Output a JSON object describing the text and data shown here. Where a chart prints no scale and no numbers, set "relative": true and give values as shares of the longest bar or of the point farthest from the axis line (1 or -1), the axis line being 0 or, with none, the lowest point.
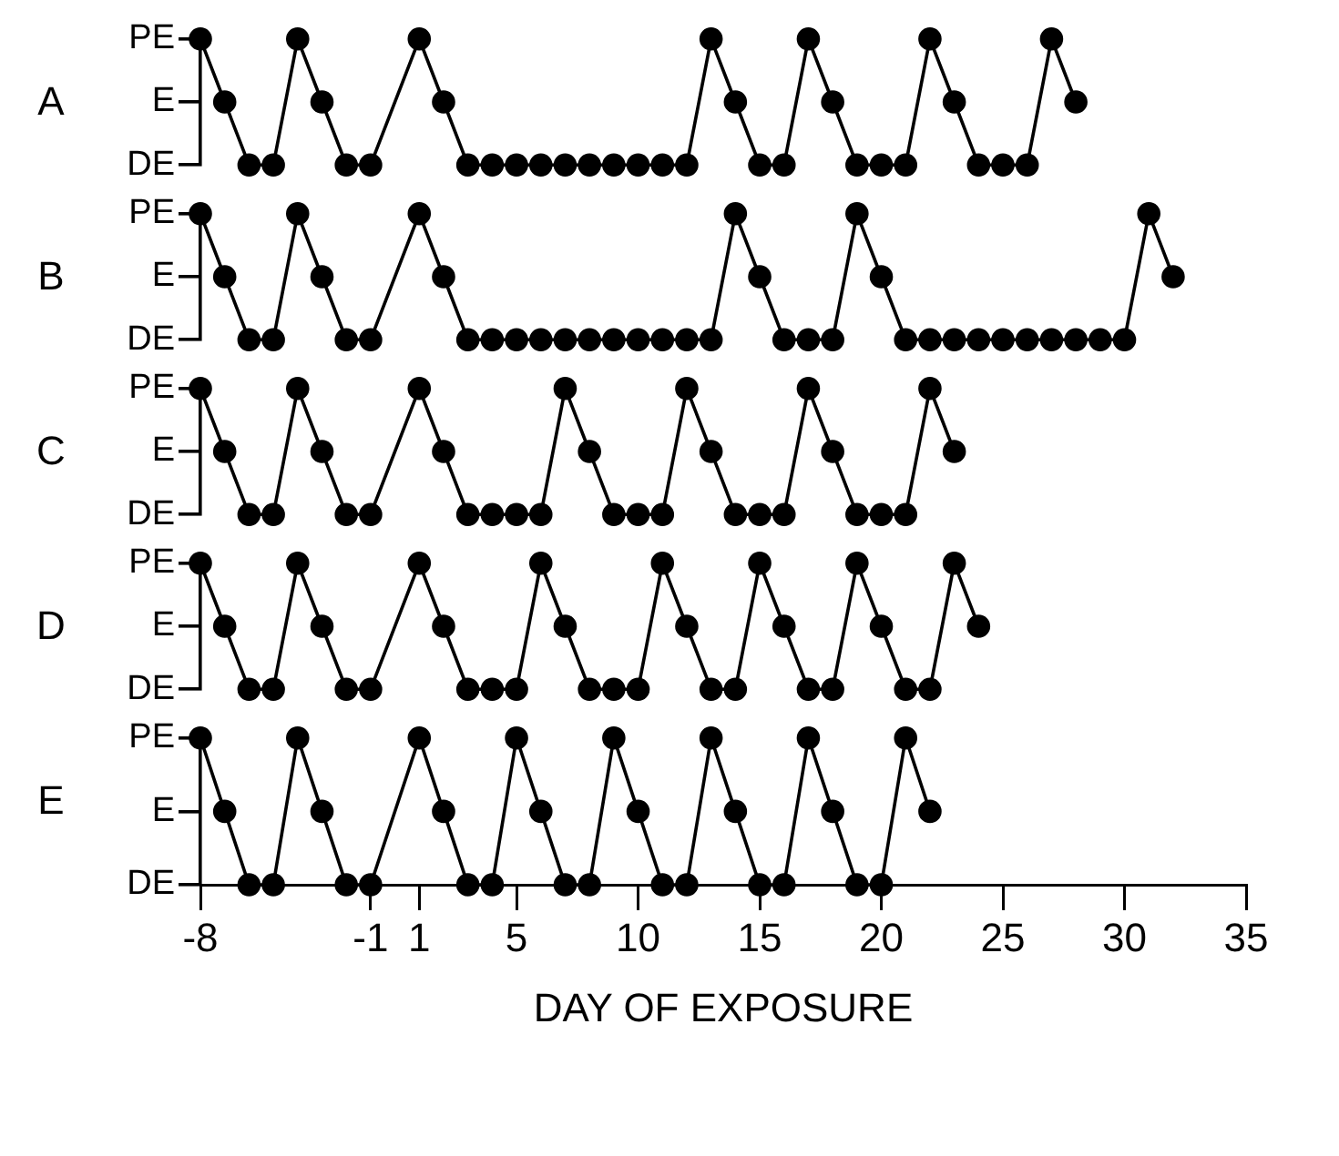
{
  "chart_data": [
    {
      "type": "line",
      "title": "A",
      "relative": true,
      "x": [
        -8,
        -7,
        -6,
        -5,
        -4,
        -3,
        -2,
        -1,
        1,
        2,
        3,
        4,
        5,
        6,
        7,
        8,
        9,
        10,
        11,
        12,
        13,
        14,
        15,
        16,
        17,
        18,
        19,
        20,
        21,
        22,
        23,
        24,
        25,
        26,
        27,
        28
      ],
      "values": [
        1,
        0.5,
        0,
        0,
        1,
        0.5,
        0,
        0,
        1,
        0.5,
        0,
        0,
        0,
        0,
        0,
        0,
        0,
        0,
        0,
        0,
        1,
        0.5,
        0,
        0,
        1,
        0.5,
        0,
        0,
        0,
        1,
        0.5,
        0,
        0,
        0,
        1,
        0.5
      ],
      "color": "#000000",
      "marker": "circle",
      "line_style": "solid",
      "xlim": [
        -8,
        35
      ],
      "xticks": [
        -8,
        -1,
        1,
        5,
        10,
        15,
        20,
        25,
        30,
        35
      ],
      "annotations": [
        "DE",
        "E",
        "PE"
      ],
      "tick_labels": "y"
    },
    {
      "type": "line",
      "title": "B",
      "relative": true,
      "x": [
        -8,
        -7,
        -6,
        -5,
        -4,
        -3,
        -2,
        -1,
        1,
        2,
        3,
        4,
        5,
        6,
        7,
        8,
        9,
        10,
        11,
        12,
        13,
        14,
        15,
        16,
        17,
        18,
        19,
        20,
        21,
        22,
        23,
        24,
        25,
        26,
        27,
        28,
        29,
        30,
        31,
        32
      ],
      "values": [
        1,
        0.5,
        0,
        0,
        1,
        0.5,
        0,
        0,
        1,
        0.5,
        0,
        0,
        0,
        0,
        0,
        0,
        0,
        0,
        0,
        0,
        0,
        1,
        0.5,
        0,
        0,
        0,
        1,
        0.5,
        0,
        0,
        0,
        0,
        0,
        0,
        0,
        0,
        0,
        0,
        1,
        0.5
      ],
      "color": "#000000",
      "marker": "circle",
      "line_style": "solid",
      "xlim": [
        -8,
        35
      ],
      "xticks": [
        -8,
        -1,
        1,
        5,
        10,
        15,
        20,
        25,
        30,
        35
      ],
      "annotations": [
        "DE",
        "E",
        "PE"
      ],
      "tick_labels": "y"
    },
    {
      "type": "line",
      "title": "C",
      "relative": true,
      "x": [
        -8,
        -7,
        -6,
        -5,
        -4,
        -3,
        -2,
        -1,
        1,
        2,
        3,
        4,
        5,
        6,
        7,
        8,
        9,
        10,
        11,
        12,
        13,
        14,
        15,
        16,
        17,
        18,
        19,
        20,
        21,
        22,
        23
      ],
      "values": [
        1,
        0.5,
        0,
        0,
        1,
        0.5,
        0,
        0,
        1,
        0.5,
        0,
        0,
        0,
        0,
        1,
        0.5,
        0,
        0,
        0,
        1,
        0.5,
        0,
        0,
        0,
        1,
        0.5,
        0,
        0,
        0,
        1,
        0.5
      ],
      "color": "#000000",
      "marker": "circle",
      "line_style": "solid",
      "xlim": [
        -8,
        35
      ],
      "xticks": [
        -8,
        -1,
        1,
        5,
        10,
        15,
        20,
        25,
        30,
        35
      ],
      "annotations": [
        "DE",
        "E",
        "PE"
      ],
      "tick_labels": "y"
    },
    {
      "type": "line",
      "title": "D",
      "relative": true,
      "x": [
        -8,
        -7,
        -6,
        -5,
        -4,
        -3,
        -2,
        -1,
        1,
        2,
        3,
        4,
        5,
        6,
        7,
        8,
        9,
        10,
        11,
        12,
        13,
        14,
        15,
        16,
        17,
        18,
        19,
        20,
        21,
        22,
        23,
        24
      ],
      "values": [
        1,
        0.5,
        0,
        0,
        1,
        0.5,
        0,
        0,
        1,
        0.5,
        0,
        0,
        0,
        1,
        0.5,
        0,
        0,
        0,
        1,
        0.5,
        0,
        0,
        1,
        0.5,
        0,
        0,
        1,
        0.5,
        0,
        0,
        1,
        0.5
      ],
      "color": "#000000",
      "marker": "circle",
      "line_style": "solid",
      "xlim": [
        -8,
        35
      ],
      "xticks": [
        -8,
        -1,
        1,
        5,
        10,
        15,
        20,
        25,
        30,
        35
      ],
      "annotations": [
        "DE",
        "E",
        "PE"
      ],
      "tick_labels": "y"
    },
    {
      "type": "line",
      "title": "E",
      "relative": true,
      "xlabel": "DAY OF EXPOSURE",
      "x": [
        -8,
        -7,
        -6,
        -5,
        -4,
        -3,
        -2,
        -1,
        1,
        2,
        3,
        4,
        5,
        6,
        7,
        8,
        9,
        10,
        11,
        12,
        13,
        14,
        15,
        16,
        17,
        18,
        19,
        20,
        21,
        22
      ],
      "values": [
        1,
        0.5,
        0,
        0,
        1,
        0.5,
        0,
        0,
        1,
        0.5,
        0,
        0,
        1,
        0.5,
        0,
        0,
        1,
        0.5,
        0,
        0,
        1,
        0.5,
        0,
        0,
        1,
        0.5,
        0,
        0,
        1,
        0.5
      ],
      "color": "#000000",
      "marker": "circle",
      "line_style": "solid",
      "xlim": [
        -8,
        35
      ],
      "xticks": [
        -8,
        -1,
        1,
        5,
        10,
        15,
        20,
        25,
        30,
        35
      ],
      "annotations": [
        "DE",
        "E",
        "PE"
      ]
    }
  ]
}
